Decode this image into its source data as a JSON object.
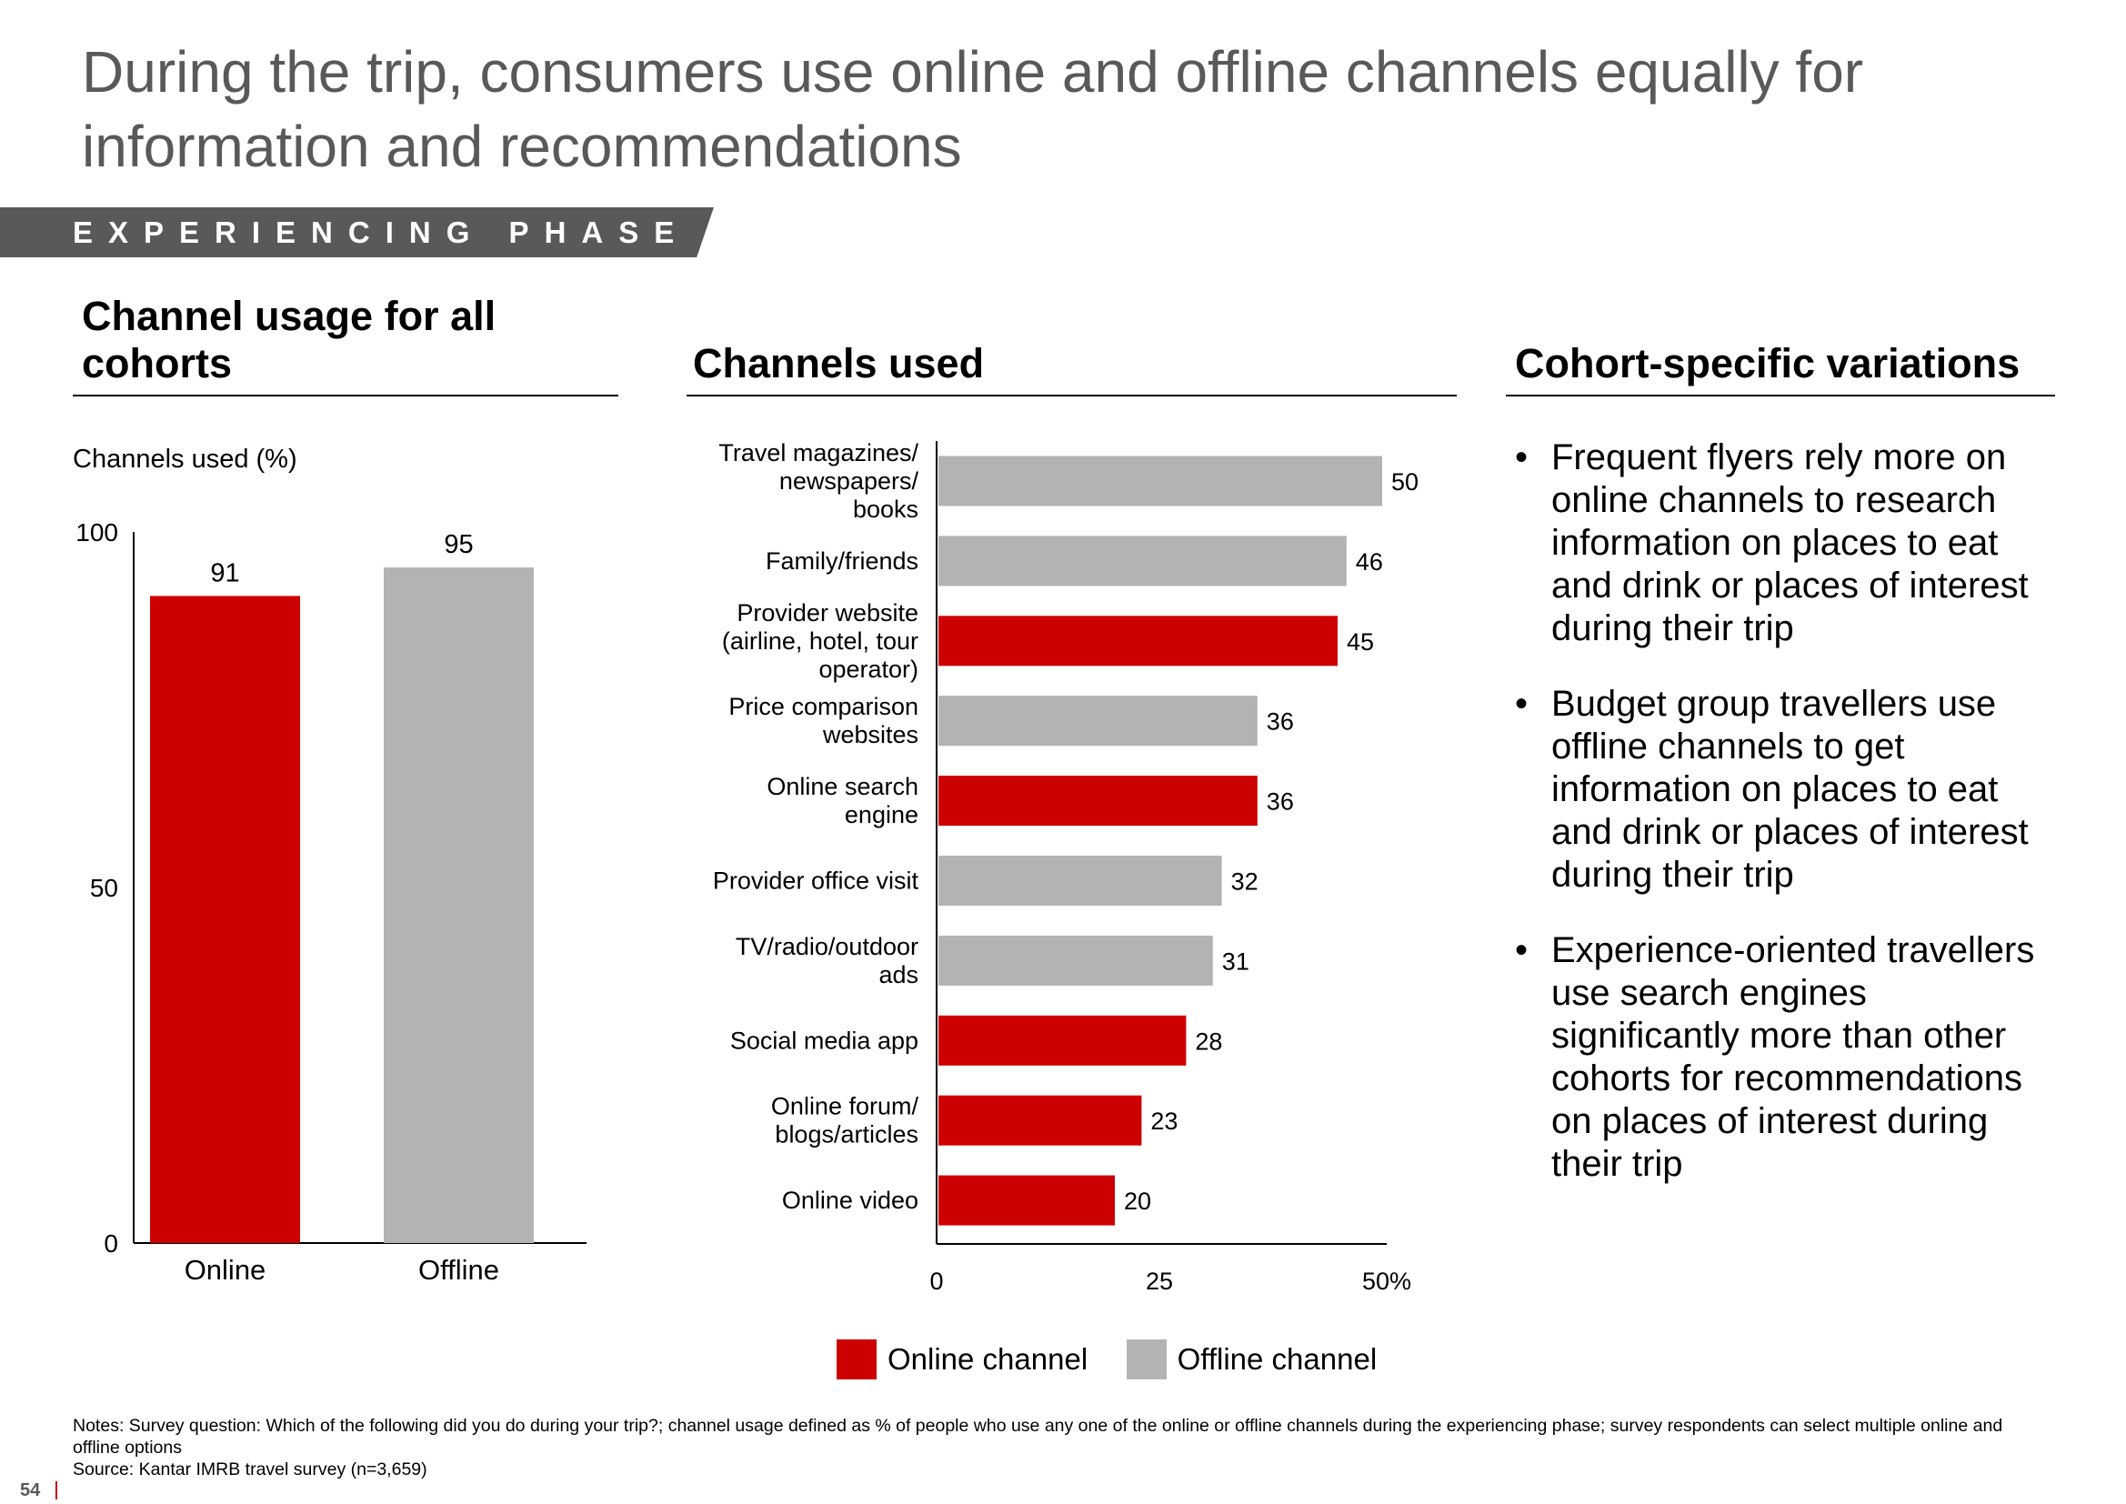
{
  "title": "During the trip, consumers use online and offline channels equally for information and recommendations",
  "phase_banner": "EXPERIENCING PHASE",
  "colors": {
    "online": "#cc0000",
    "offline": "#b3b3b3",
    "banner": "#595959"
  },
  "left_section": {
    "title": "Channel usage for all cohorts"
  },
  "middle_section": {
    "title": "Channels used"
  },
  "right_section": {
    "title": "Cohort-specific variations",
    "bullets": [
      "Frequent flyers rely more on online channels to research information on places to eat and drink or places of interest during their trip",
      "Budget group travellers use offline channels to get information on places to eat and drink or places of interest during their trip",
      "Experience-oriented travellers use search engines significantly more than other cohorts for recommendations on places of interest during their trip"
    ]
  },
  "legend": {
    "online_label": "Online channel",
    "offline_label": "Offline channel"
  },
  "notes": {
    "text": "Notes: Survey question: Which of the following did you do during your trip?; channel usage defined as % of people who use any one of the online or offline channels during the experiencing phase; survey respondents can select multiple online and offline options",
    "source": "Source: Kantar IMRB travel survey (n=3,659)"
  },
  "page_number": "54",
  "chart_data": [
    {
      "type": "bar",
      "ylabel": "Channels used (%)",
      "categories": [
        "Online",
        "Offline"
      ],
      "values": [
        91,
        95
      ],
      "series_kind": [
        "online",
        "offline"
      ],
      "ylim": [
        0,
        100
      ],
      "yticks": [
        "0",
        "50",
        "100"
      ],
      "data_labels": [
        "91",
        "95"
      ]
    },
    {
      "type": "bar",
      "orientation": "horizontal",
      "categories": [
        "Travel magazines/ newspapers/ books",
        "Family/friends",
        "Provider website (airline, hotel, tour operator)",
        "Price comparison websites",
        "Online search engine",
        "Provider office visit",
        "TV/radio/outdoor ads",
        "Social media app",
        "Online forum/ blogs/articles",
        "Online video"
      ],
      "category_lines": [
        [
          "Travel magazines/",
          "newspapers/",
          "books"
        ],
        [
          "Family/friends"
        ],
        [
          "Provider website",
          "(airline, hotel, tour",
          "operator)"
        ],
        [
          "Price comparison",
          "websites"
        ],
        [
          "Online search",
          "engine"
        ],
        [
          "Provider office visit"
        ],
        [
          "TV/radio/outdoor",
          "ads"
        ],
        [
          "Social media app"
        ],
        [
          "Online forum/",
          "blogs/articles"
        ],
        [
          "Online video"
        ]
      ],
      "values": [
        50,
        46,
        45,
        36,
        36,
        32,
        31,
        28,
        23,
        20
      ],
      "series_kind": [
        "offline",
        "offline",
        "online",
        "offline",
        "online",
        "offline",
        "offline",
        "online",
        "online",
        "online"
      ],
      "data_labels": [
        "50",
        "46",
        "45",
        "36",
        "36",
        "32",
        "31",
        "28",
        "23",
        "20"
      ],
      "xlim": [
        0,
        50
      ],
      "xticks": [
        "0",
        "25",
        "50%"
      ]
    }
  ]
}
